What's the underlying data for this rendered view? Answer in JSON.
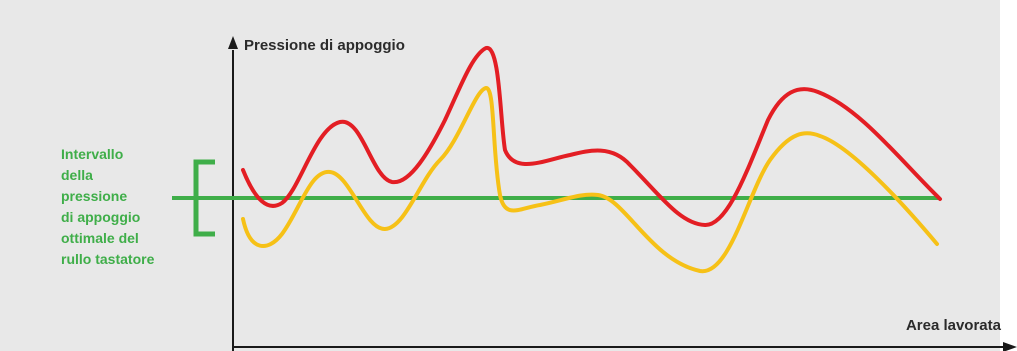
{
  "labels": {
    "y_axis": "Pressione di appoggio",
    "x_axis": "Area lavorata",
    "band_lines": [
      "Intervallo",
      "della",
      "pressione",
      "di appoggio",
      "ottimale del",
      "rullo tastatore"
    ]
  },
  "colors": {
    "background": "#e8e8e8",
    "axis": "#1a1a1a",
    "text": "#2b2b2b",
    "optimal": "#3fae49",
    "curve_red": "#e31e24",
    "curve_yellow": "#f6c117"
  },
  "curves": [
    {
      "id": "red-curve",
      "color_key": "curve_red"
    },
    {
      "id": "yellow-curve",
      "color_key": "curve_yellow"
    }
  ]
}
